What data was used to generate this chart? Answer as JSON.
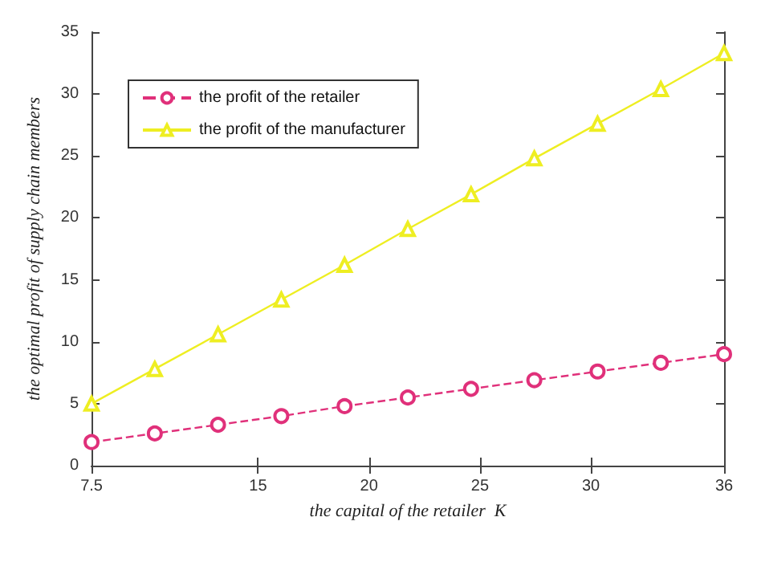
{
  "chart_data": {
    "type": "line",
    "xlabel": "the capital of the retailer  K",
    "ylabel": "the optimal profit of supply chain members",
    "x": [
      7.5,
      10.35,
      13.2,
      16.05,
      18.9,
      21.75,
      24.6,
      27.45,
      30.3,
      33.15,
      36
    ],
    "series": [
      {
        "name": "the profit of the retailer",
        "color": "#e0307a",
        "marker": "circle",
        "line_style": "dashed",
        "values": [
          1.9,
          2.6,
          3.3,
          4.0,
          4.8,
          5.5,
          6.2,
          6.9,
          7.6,
          8.3,
          9.0
        ]
      },
      {
        "name": "the profit of the manufacturer",
        "color": "#eeee22",
        "marker": "triangle",
        "line_style": "solid",
        "values": [
          5.0,
          7.8,
          10.6,
          13.4,
          16.2,
          19.1,
          21.9,
          24.8,
          27.6,
          30.4,
          33.3
        ]
      }
    ],
    "xlim": [
      7.5,
      36
    ],
    "xticks": [
      7.5,
      15,
      20,
      25,
      30,
      36
    ],
    "ylim": [
      0,
      35
    ],
    "yticks": [
      0,
      5,
      10,
      15,
      20,
      25,
      30,
      35
    ],
    "grid": false,
    "legend": "top left"
  }
}
